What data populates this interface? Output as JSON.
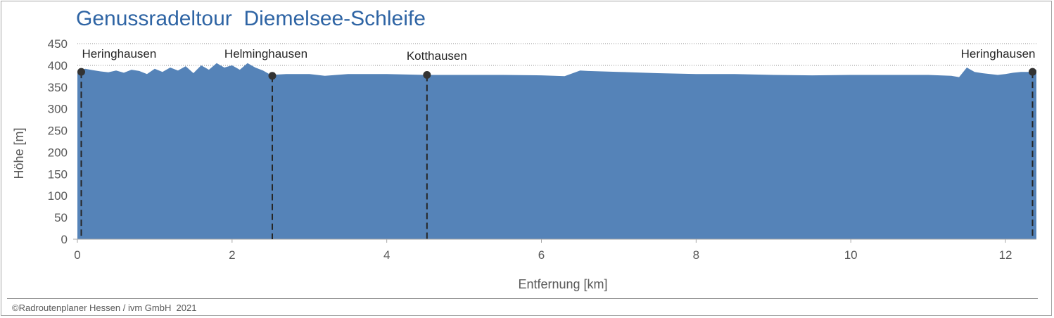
{
  "chart_data": {
    "type": "area",
    "title": "Genussradeltour  Diemelsee-Schleife",
    "xlabel": "Entfernung [km]",
    "ylabel": "Höhe [m]",
    "xlim": [
      0,
      12.4
    ],
    "ylim": [
      0,
      450
    ],
    "x_ticks": [
      0,
      2,
      4,
      6,
      8,
      10,
      12
    ],
    "y_ticks": [
      0,
      50,
      100,
      150,
      200,
      250,
      300,
      350,
      400,
      450
    ],
    "grid": "horizontal-dotted",
    "fill_color": "#5583b8",
    "series": [
      {
        "x": [
          0,
          0.1,
          0.2,
          0.3,
          0.4,
          0.5,
          0.6,
          0.7,
          0.8,
          0.9,
          1.0,
          1.1,
          1.2,
          1.3,
          1.4,
          1.5,
          1.6,
          1.7,
          1.8,
          1.9,
          2.0,
          2.1,
          2.2,
          2.3,
          2.4,
          2.5,
          2.7,
          3.0,
          3.2,
          3.5,
          4.0,
          4.5,
          5.0,
          5.5,
          6.0,
          6.3,
          6.5,
          6.6,
          7.0,
          7.5,
          8.0,
          8.5,
          9.0,
          9.5,
          10.0,
          10.5,
          11.0,
          11.3,
          11.4,
          11.5,
          11.6,
          11.7,
          11.8,
          11.9,
          12.0,
          12.1,
          12.2,
          12.3,
          12.4
        ],
        "y": [
          385,
          392,
          389,
          386,
          384,
          388,
          383,
          390,
          387,
          380,
          392,
          385,
          395,
          388,
          398,
          382,
          400,
          390,
          405,
          395,
          400,
          390,
          405,
          395,
          388,
          378,
          380,
          380,
          376,
          380,
          380,
          378,
          378,
          378,
          377,
          375,
          388,
          387,
          385,
          382,
          380,
          380,
          378,
          377,
          378,
          378,
          378,
          376,
          373,
          395,
          385,
          382,
          380,
          378,
          380,
          383,
          385,
          385,
          390
        ]
      }
    ],
    "waypoints": [
      {
        "name": "Heringhausen",
        "x": 0.05,
        "y": 385
      },
      {
        "name": "Helminghausen",
        "x": 2.52,
        "y": 376
      },
      {
        "name": "Kotthausen",
        "x": 4.52,
        "y": 378
      },
      {
        "name": "Heringhausen",
        "x": 12.35,
        "y": 385
      }
    ]
  },
  "copyright": "©Radroutenplaner Hessen / ivm GmbH  2021"
}
